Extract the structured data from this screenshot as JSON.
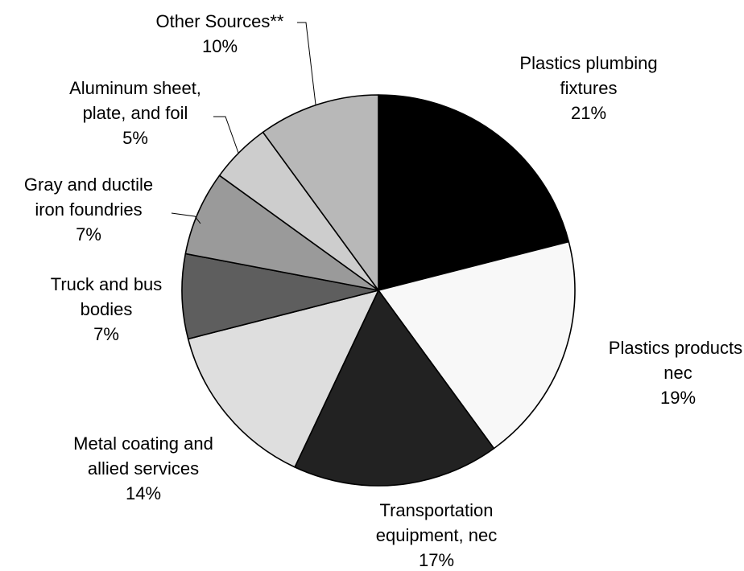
{
  "chart_data": {
    "type": "pie",
    "title": "",
    "start_angle_deg": 0,
    "direction": "clockwise",
    "slices": [
      {
        "label_lines": [
          "Plastics plumbing",
          "fixtures"
        ],
        "pct_label": "21%",
        "value": 21,
        "color": "#000000"
      },
      {
        "label_lines": [
          "Plastics products,",
          "nec"
        ],
        "pct_label": "19%",
        "value": 19,
        "color": "#f8f8f8"
      },
      {
        "label_lines": [
          "Transportation",
          "equipment, nec"
        ],
        "pct_label": "17%",
        "value": 17,
        "color": "#222222"
      },
      {
        "label_lines": [
          "Metal coating and",
          "allied services"
        ],
        "pct_label": "14%",
        "value": 14,
        "color": "#dedede"
      },
      {
        "label_lines": [
          "Truck and bus",
          "bodies"
        ],
        "pct_label": "7%",
        "value": 7,
        "color": "#5e5e5e"
      },
      {
        "label_lines": [
          "Gray  and ductile",
          "iron foundries"
        ],
        "pct_label": "7%",
        "value": 7,
        "color": "#9a9a9a"
      },
      {
        "label_lines": [
          "Aluminum sheet,",
          "plate, and foil"
        ],
        "pct_label": "5%",
        "value": 5,
        "color": "#cdcdcd"
      },
      {
        "label_lines": [
          "Other Sources**"
        ],
        "pct_label": "10%",
        "value": 10,
        "color": "#b8b8b8"
      }
    ]
  }
}
